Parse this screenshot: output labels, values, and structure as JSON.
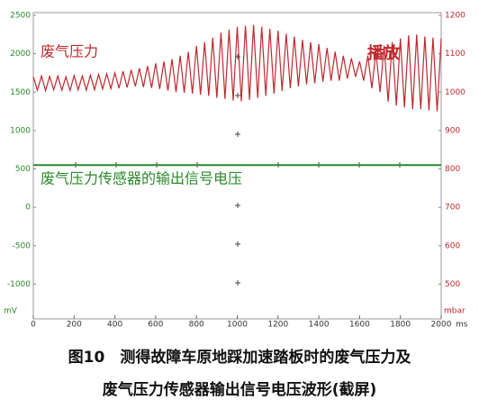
{
  "chart_data": {
    "type": "line",
    "annotations": [
      "废气压力",
      "播放",
      "废气压力传感器的输出信号电压"
    ],
    "caption": [
      "图10　测得故障车原地踩加速踏板时的废气压力及",
      "废气压力传感器输出信号电压波形(截屏)"
    ],
    "y_label": "mV",
    "y2_label": "mbar",
    "x_label": "ms",
    "xlim": [
      0,
      2000
    ],
    "xticks": [
      0,
      200,
      400,
      600,
      800,
      1000,
      1200,
      1400,
      1600,
      1800,
      2000
    ],
    "ylim": [
      -1500,
      2500
    ],
    "yticks": [
      2500,
      2000,
      1500,
      1000,
      500,
      0,
      -500,
      -1000
    ],
    "y2lim": [
      400,
      1200
    ],
    "y2ticks": [
      1200,
      1100,
      1000,
      900,
      800,
      700,
      600,
      500
    ],
    "series": [
      {
        "name": "废气压力",
        "color": "#c0282d",
        "axis": "y2",
        "x": [
          0,
          20,
          40,
          60,
          80,
          100,
          120,
          140,
          160,
          180,
          200,
          220,
          240,
          260,
          280,
          300,
          320,
          340,
          360,
          380,
          400,
          420,
          440,
          460,
          480,
          500,
          520,
          540,
          560,
          580,
          600,
          620,
          640,
          660,
          680,
          700,
          720,
          740,
          760,
          780,
          800,
          820,
          840,
          860,
          880,
          900,
          920,
          940,
          960,
          980,
          1000,
          1020,
          1040,
          1060,
          1080,
          1100,
          1120,
          1140,
          1160,
          1180,
          1200,
          1220,
          1240,
          1260,
          1280,
          1300,
          1320,
          1340,
          1360,
          1380,
          1400,
          1420,
          1440,
          1460,
          1480,
          1500,
          1520,
          1540,
          1560,
          1580,
          1600,
          1620,
          1640,
          1660,
          1680,
          1700,
          1720,
          1740,
          1760,
          1780,
          1800,
          1820,
          1840,
          1860,
          1880,
          1900,
          1920,
          1940,
          1960,
          1980,
          2000
        ],
        "values": [
          1040,
          1005,
          1042,
          1004,
          1041,
          1006,
          1042,
          1005,
          1040,
          1004,
          1043,
          1006,
          1042,
          1005,
          1044,
          1006,
          1046,
          1008,
          1048,
          1009,
          1050,
          1010,
          1054,
          1012,
          1058,
          1015,
          1062,
          1013,
          1068,
          1011,
          1075,
          1008,
          1080,
          1004,
          1086,
          1000,
          1095,
          998,
          1105,
          996,
          1120,
          993,
          1130,
          990,
          1142,
          985,
          1155,
          982,
          1163,
          978,
          1170,
          976,
          1173,
          980,
          1175,
          985,
          1170,
          990,
          1165,
          996,
          1160,
          1003,
          1152,
          1010,
          1145,
          1015,
          1136,
          1020,
          1130,
          1023,
          1125,
          1027,
          1115,
          1030,
          1105,
          1030,
          1095,
          1035,
          1088,
          1040,
          1080,
          1030,
          1095,
          1010,
          1105,
          1000,
          1120,
          975,
          1130,
          965,
          1140,
          960,
          1148,
          955,
          1150,
          955,
          1145,
          952,
          1142,
          950,
          1140
        ]
      },
      {
        "name": "废气压力传感器的输出信号电压",
        "color": "#2a8a2a",
        "axis": "y",
        "x": [
          0,
          2000
        ],
        "values": [
          550,
          550
        ]
      }
    ]
  }
}
